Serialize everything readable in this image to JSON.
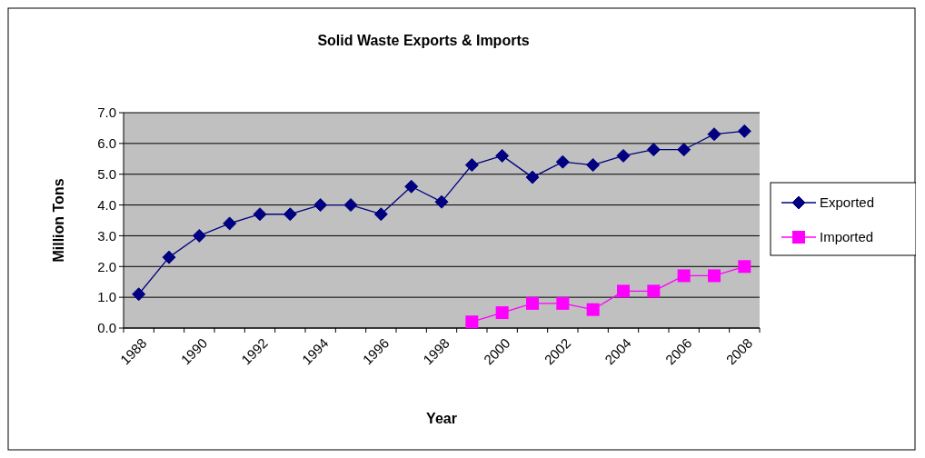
{
  "chart_data": {
    "type": "line",
    "title": "Solid Waste Exports  & Imports",
    "xlabel": "Year",
    "ylabel": "Million Tons",
    "categories": [
      "1988",
      null,
      "1990",
      null,
      "1992",
      null,
      "1994",
      null,
      "1996",
      null,
      "1998",
      null,
      "2000",
      null,
      "2002",
      null,
      "2004",
      null,
      "2006",
      null,
      "2008"
    ],
    "series": [
      {
        "name": "Exported",
        "color": "#000080",
        "marker": "diamond",
        "values": [
          1.1,
          2.3,
          3.0,
          3.4,
          3.7,
          3.7,
          4.0,
          4.0,
          3.7,
          4.6,
          4.1,
          5.3,
          5.6,
          4.9,
          5.4,
          5.3,
          5.6,
          5.8,
          5.8,
          6.3,
          6.4
        ]
      },
      {
        "name": "Imported",
        "color": "#ff00ff",
        "marker": "square",
        "values": [
          null,
          null,
          null,
          null,
          null,
          null,
          null,
          null,
          null,
          null,
          null,
          0.2,
          0.5,
          0.8,
          0.8,
          0.6,
          1.2,
          1.2,
          1.7,
          1.7,
          2.0
        ]
      }
    ],
    "ylim": [
      0,
      7
    ],
    "yticks": [
      {
        "value": 0,
        "label": "0.0"
      },
      {
        "value": 1,
        "label": "1.0"
      },
      {
        "value": 2,
        "label": "2.0"
      },
      {
        "value": 3,
        "label": "3.0"
      },
      {
        "value": 4,
        "label": "4.0"
      },
      {
        "value": 5,
        "label": "5.0"
      },
      {
        "value": 6,
        "label": "6.0"
      },
      {
        "value": 7,
        "label": "7.0"
      }
    ],
    "grid": "y",
    "legend": "right",
    "line_style": "solid"
  }
}
